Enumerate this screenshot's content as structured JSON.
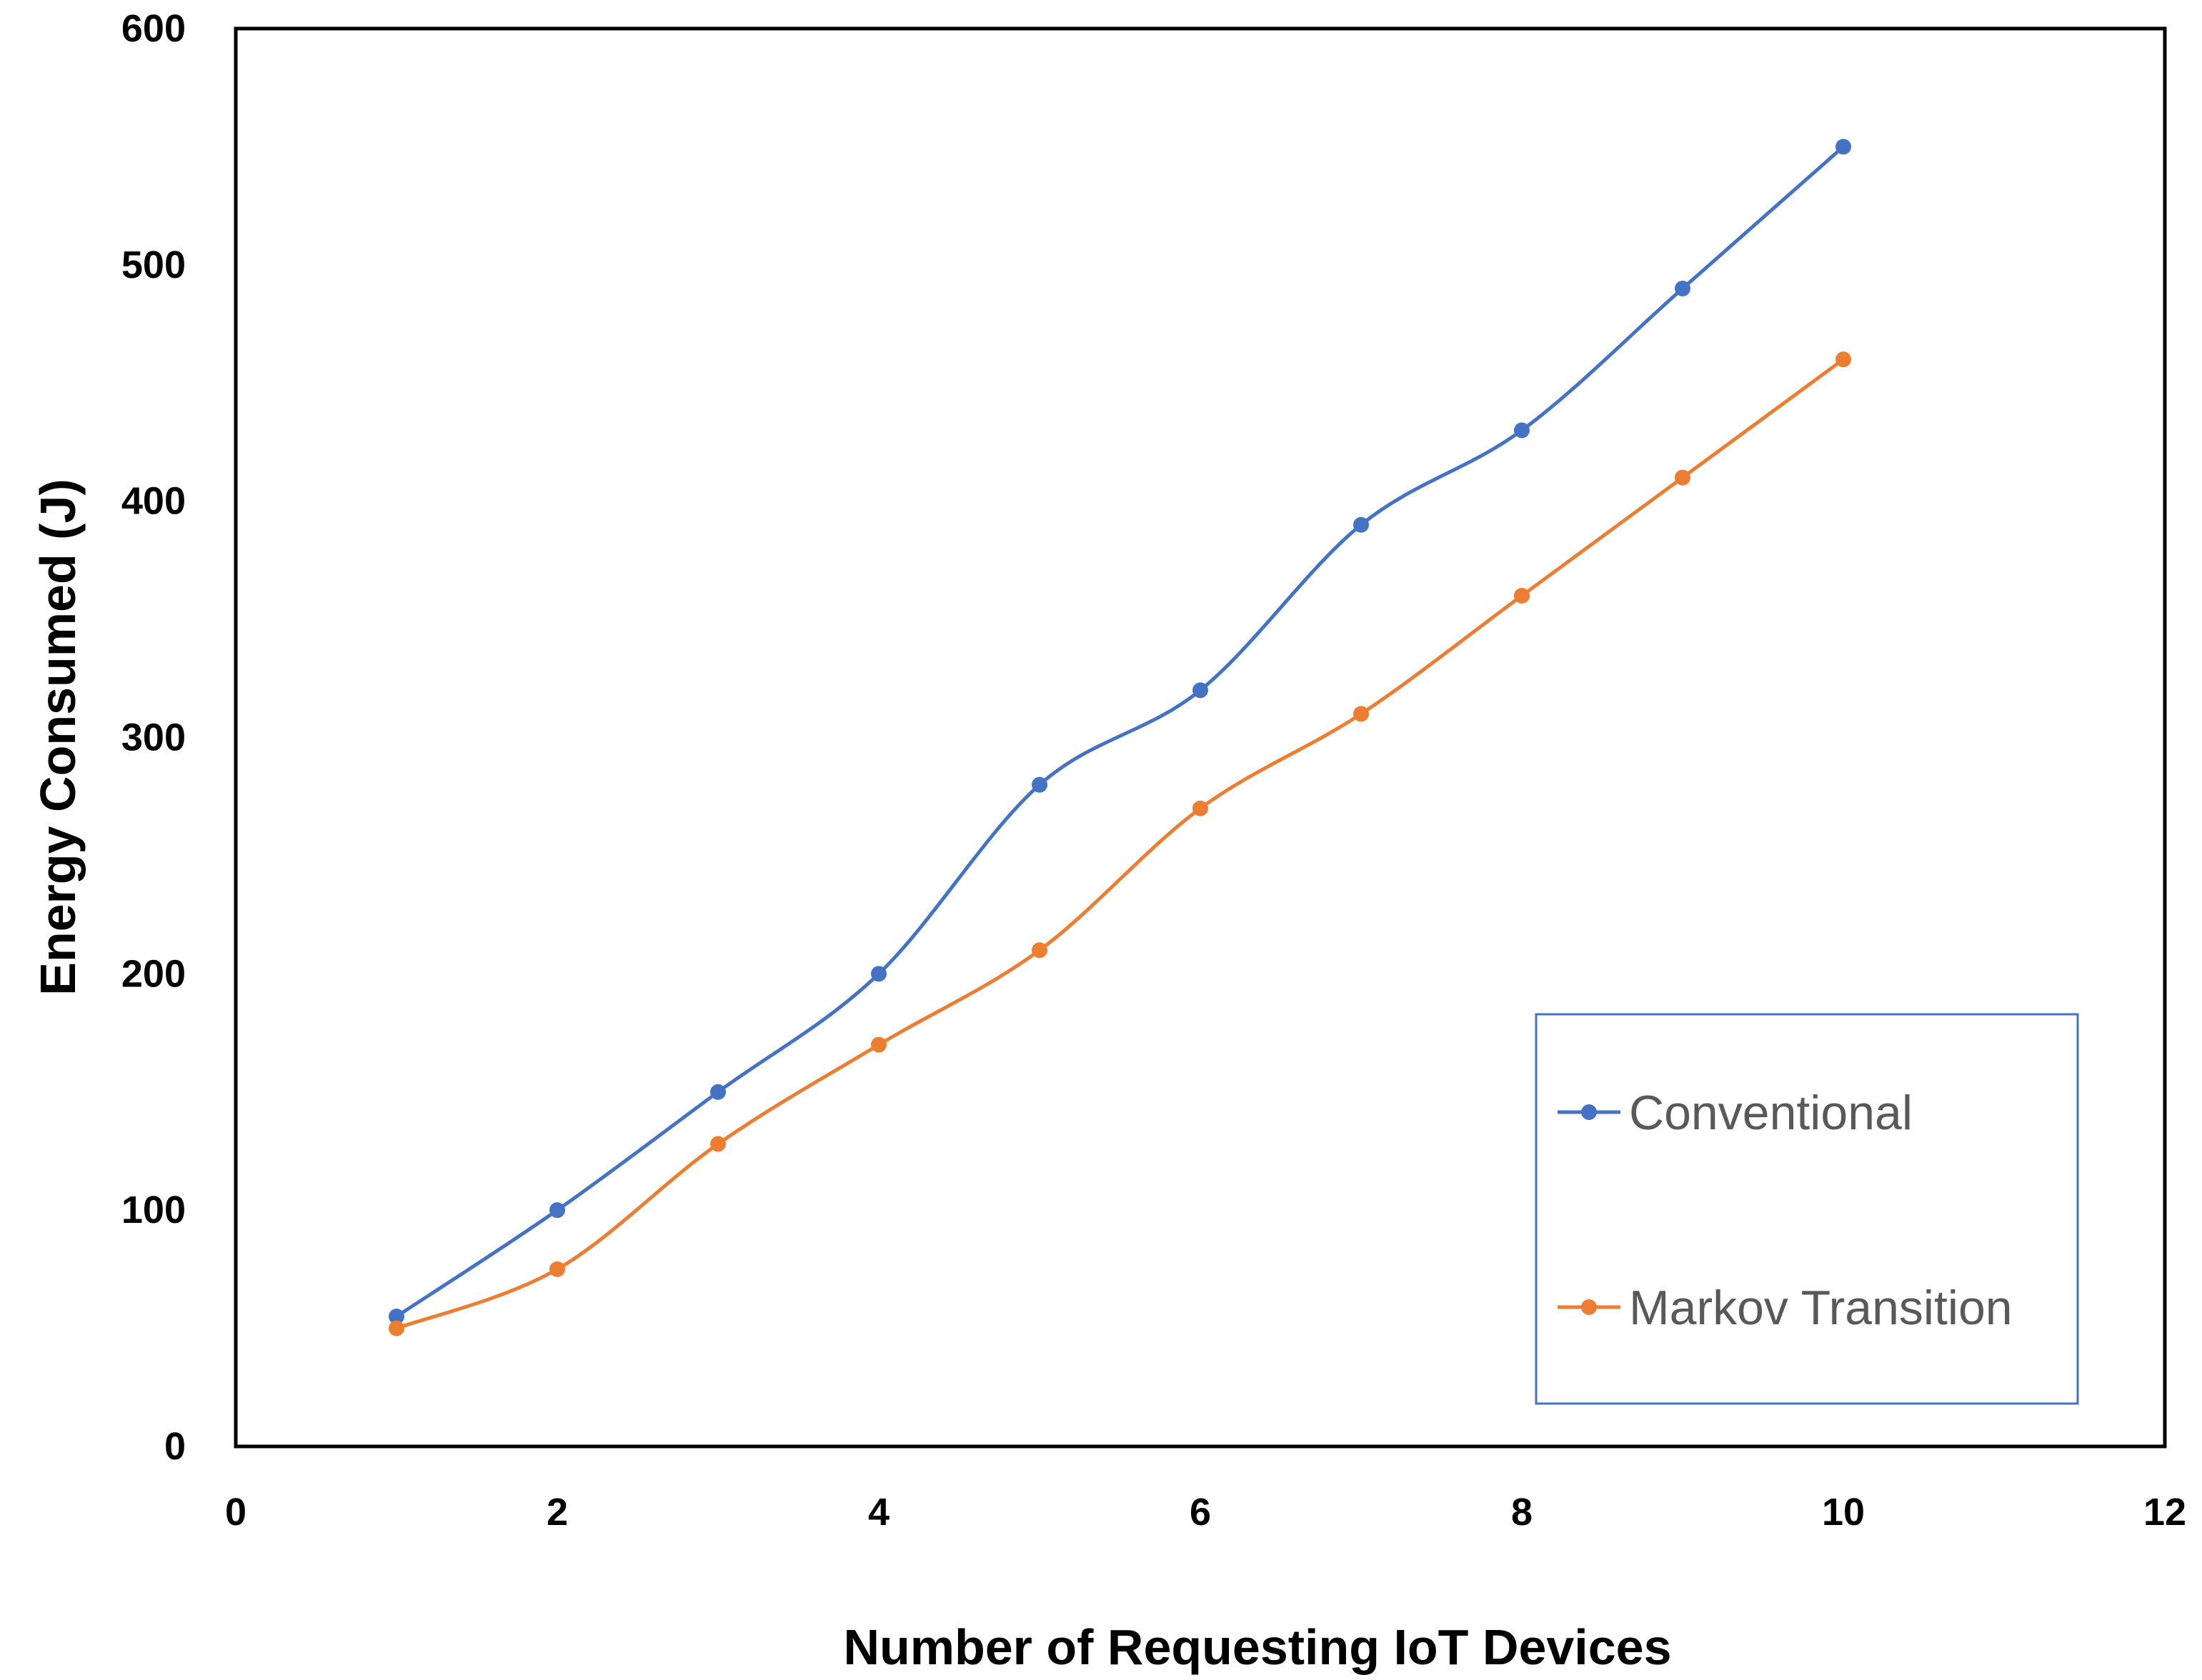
{
  "chart_data": {
    "type": "line",
    "title": "",
    "xlabel": "Number of Requesting IoT Devices",
    "ylabel": "Energy Consumed (J)",
    "xlim": [
      0,
      12
    ],
    "ylim": [
      0,
      600
    ],
    "xticks": [
      0,
      2,
      4,
      6,
      8,
      10,
      12
    ],
    "yticks": [
      0,
      100,
      200,
      300,
      400,
      500,
      600
    ],
    "x": [
      1,
      2,
      3,
      4,
      5,
      6,
      7,
      8,
      9,
      10
    ],
    "grid": false,
    "smooth": true,
    "legend_position": "bottom-right",
    "series": [
      {
        "name": "Conventional",
        "color": "#4472C4",
        "values": [
          55,
          100,
          150,
          200,
          280,
          320,
          390,
          430,
          490,
          550
        ]
      },
      {
        "name": "Markov Transition",
        "color": "#ED7D31",
        "values": [
          50,
          75,
          128,
          170,
          210,
          270,
          310,
          360,
          410,
          460
        ]
      }
    ]
  }
}
